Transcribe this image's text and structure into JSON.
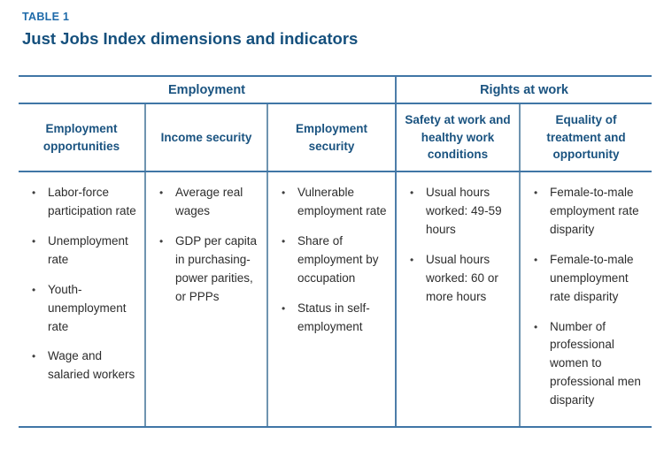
{
  "heading": {
    "eyebrow": "TABLE 1",
    "title": "Just Jobs Index dimensions and indicators"
  },
  "table": {
    "groups": [
      {
        "label": "Employment",
        "span": 3
      },
      {
        "label": "Rights at work",
        "span": 2
      }
    ],
    "columns": [
      {
        "header": "Employment opportunities",
        "items": [
          "Labor-force participation rate",
          "Unemployment rate",
          "Youth-unemployment rate",
          "Wage and salaried workers"
        ]
      },
      {
        "header": "Income security",
        "items": [
          "Average real wages",
          "GDP per capita in purchasing-power parities, or PPPs"
        ]
      },
      {
        "header": "Employment security",
        "items": [
          "Vulnerable employment rate",
          "Share of employment by occupation",
          "Status in self-employment"
        ]
      },
      {
        "header": "Safety at work and healthy work conditions",
        "items": [
          "Usual hours worked: 49-59 hours",
          "Usual hours worked: 60 or more hours"
        ]
      },
      {
        "header": "Equality of treatment and opportunity",
        "items": [
          "Female-to-male employment rate disparity",
          "Female-to-male unemployment rate disparity",
          "Number of professional women to professional men disparity"
        ]
      }
    ]
  },
  "icons": {
    "bullet_glyph": "•"
  },
  "colors": {
    "eyebrow_blue": "#1e6aa9",
    "title_navy": "#15507d",
    "header_blue": "#1a5380",
    "rule_blue": "#4076a6",
    "divider_blue": "#6f94b0",
    "body_text": "#2d2d2d"
  }
}
